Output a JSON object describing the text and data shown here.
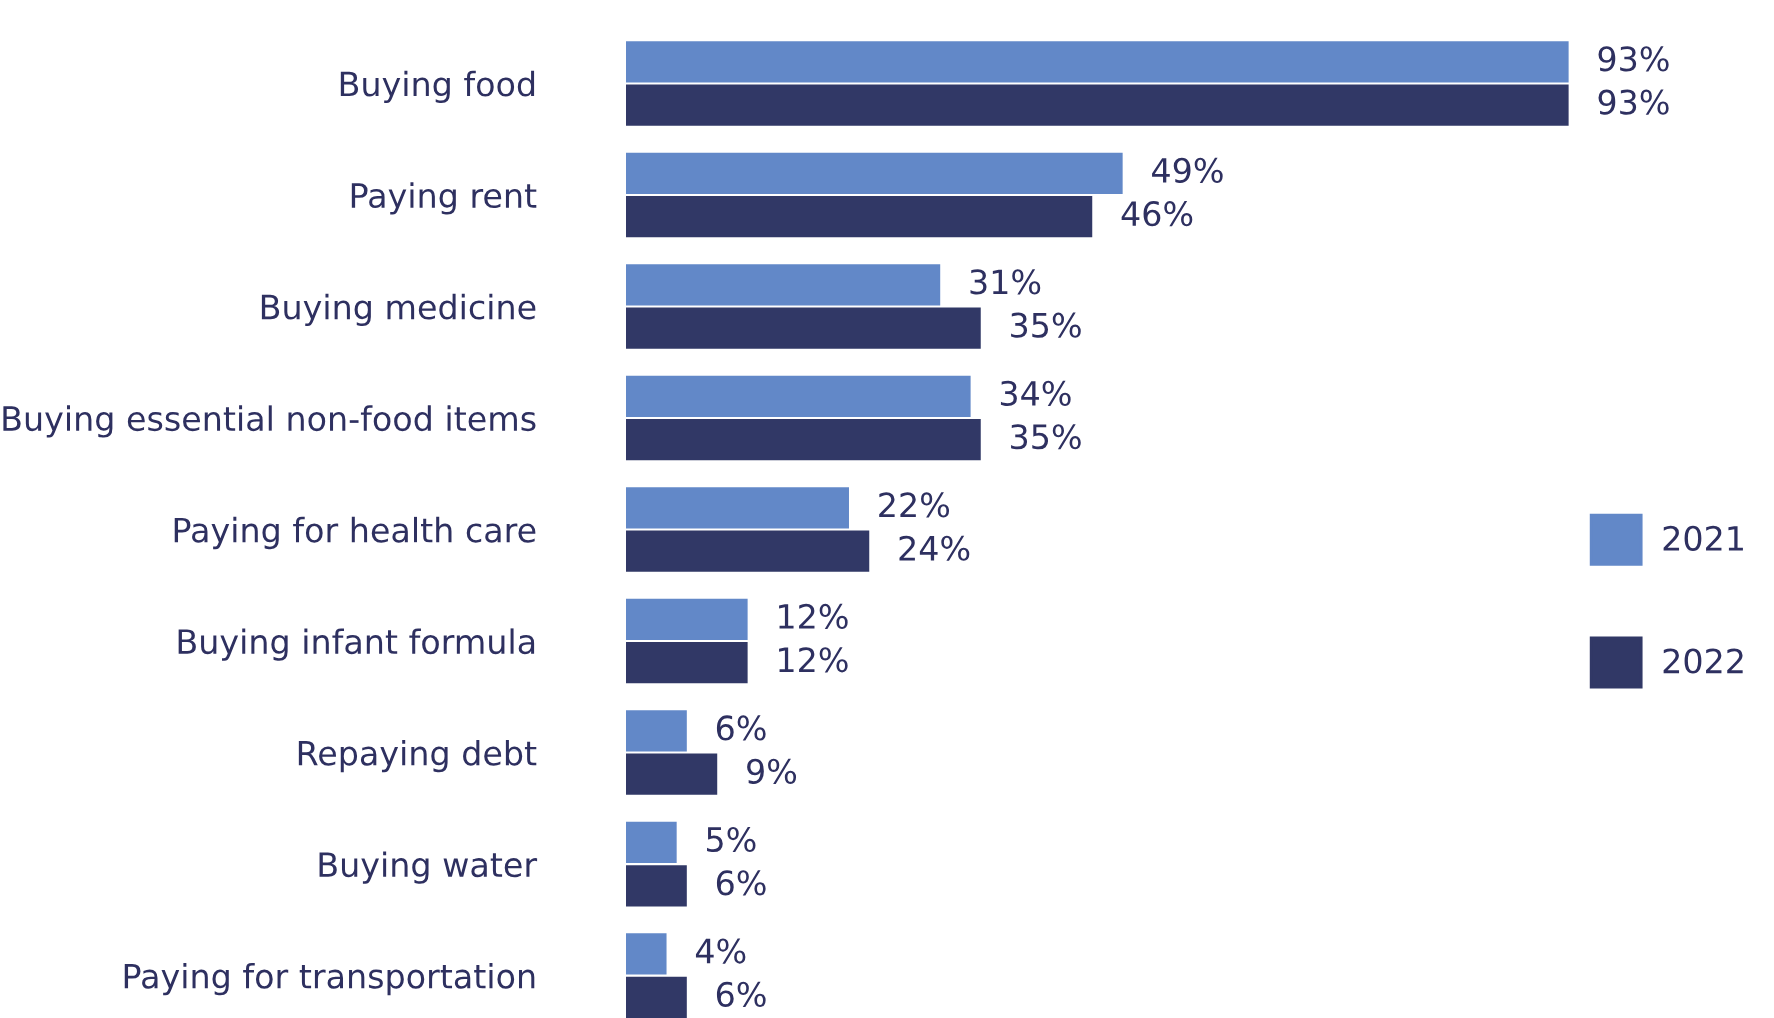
{
  "chart_data": {
    "type": "bar",
    "orientation": "horizontal",
    "categories": [
      "Buying food",
      "Paying rent",
      "Buying medicine",
      "Buying essential non-food items",
      "Paying for health care",
      "Buying infant formula",
      "Repaying debt",
      "Buying water",
      "Paying for transportation"
    ],
    "series": [
      {
        "name": "2021",
        "color": "#6288c8",
        "values": [
          93,
          49,
          31,
          34,
          22,
          12,
          6,
          5,
          4
        ],
        "value_labels": [
          "93%",
          "49%",
          "31%",
          "34%",
          "22%",
          "12%",
          "6%",
          "5%",
          "4%"
        ]
      },
      {
        "name": "2022",
        "color": "#313866",
        "values": [
          93,
          46,
          35,
          35,
          24,
          12,
          9,
          6,
          6
        ],
        "value_labels": [
          "93%",
          "46%",
          "35%",
          "35%",
          "24%",
          "12%",
          "9%",
          "6%",
          "6%"
        ]
      }
    ],
    "legend": "right",
    "grid": false
  }
}
